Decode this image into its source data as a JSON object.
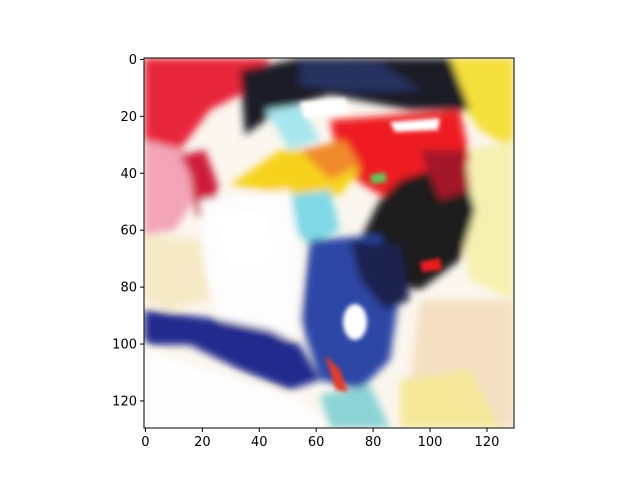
{
  "chart_data": {
    "type": "heatmap",
    "title": "",
    "xlabel": "",
    "ylabel": "",
    "xlim": [
      -0.5,
      129.5
    ],
    "ylim": [
      129.5,
      -0.5
    ],
    "x_ticks": [
      0,
      20,
      40,
      60,
      80,
      100,
      120
    ],
    "y_ticks": [
      0,
      20,
      40,
      60,
      80,
      100,
      120
    ],
    "grid": false,
    "legend": "none",
    "colors": {
      "background": "#ffffff",
      "white": "#fdfdfd",
      "red": "#ee1b24",
      "crimson": "#d91e3c",
      "navy": "#1e2150",
      "dark": "#1b1a1f",
      "blue": "#2f46a6",
      "deep_blue": "#242c8e",
      "yellow": "#f7e12a",
      "light_yellow": "#f6f0a6",
      "pink": "#f4a9b8",
      "cream": "#f5e7c9",
      "cyan": "#7fd8e6",
      "orange": "#f08a2c"
    }
  }
}
